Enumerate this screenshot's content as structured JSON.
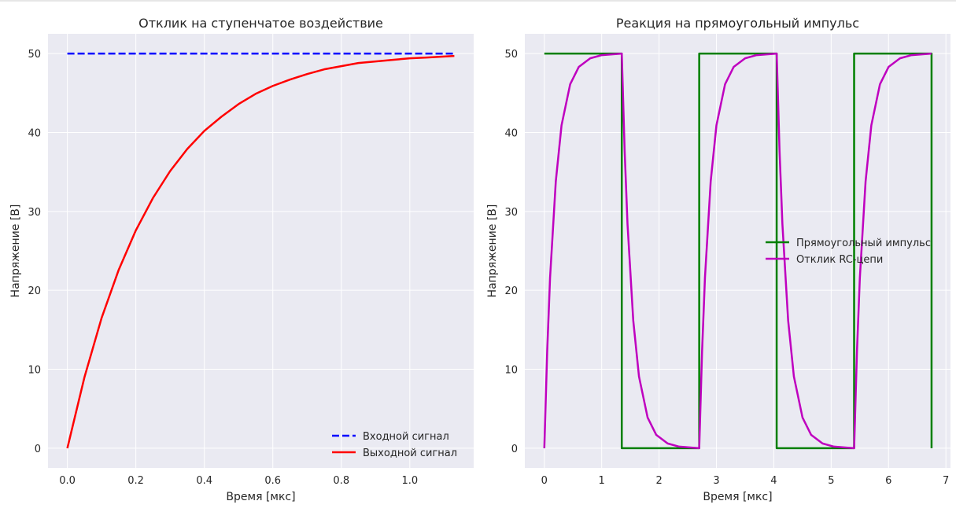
{
  "chart_data": [
    {
      "type": "line",
      "title": "Отклик на ступенчатое воздействие",
      "xlabel": "Время [мкс]",
      "ylabel": "Напряжение [В]",
      "xlim": [
        -0.0565,
        1.1865
      ],
      "ylim": [
        -2.5,
        52.5
      ],
      "xticks": [
        0.0,
        0.2,
        0.4,
        0.6,
        0.8,
        1.0
      ],
      "xtick_labels": [
        "0.0",
        "0.2",
        "0.4",
        "0.6",
        "0.8",
        "1.0"
      ],
      "yticks": [
        0,
        10,
        20,
        30,
        40,
        50
      ],
      "ytick_labels": [
        "0",
        "10",
        "20",
        "30",
        "40",
        "50"
      ],
      "grid": true,
      "legend_position": "lower right",
      "series": [
        {
          "name": "Входной сигнал",
          "color": "#0000ff",
          "style": "dashed",
          "x": [
            0.0,
            1.13
          ],
          "y": [
            50,
            50
          ]
        },
        {
          "name": "Выходной сигнал",
          "color": "#ff0000",
          "style": "solid",
          "x": [
            0.0,
            0.05,
            0.1,
            0.15,
            0.2,
            0.25,
            0.3,
            0.35,
            0.4,
            0.45,
            0.5,
            0.55,
            0.6,
            0.65,
            0.7,
            0.75,
            0.8,
            0.85,
            0.9,
            0.95,
            1.0,
            1.05,
            1.13
          ],
          "y": [
            0.0,
            9.0,
            16.5,
            22.6,
            27.6,
            31.7,
            35.1,
            37.9,
            40.2,
            42.0,
            43.6,
            44.9,
            45.9,
            46.7,
            47.4,
            48.0,
            48.4,
            48.8,
            49.0,
            49.2,
            49.4,
            49.5,
            49.7
          ]
        }
      ]
    },
    {
      "type": "line",
      "title": "Реакция на прямоугольный импульс",
      "xlabel": "Время [мкс]",
      "ylabel": "Напряжение [В]",
      "xlim": [
        -0.34,
        7.08
      ],
      "ylim": [
        -2.5,
        52.5
      ],
      "xticks": [
        0,
        1,
        2,
        3,
        4,
        5,
        6,
        7
      ],
      "xtick_labels": [
        "0",
        "1",
        "2",
        "3",
        "4",
        "5",
        "6",
        "7"
      ],
      "yticks": [
        0,
        10,
        20,
        30,
        40,
        50
      ],
      "ytick_labels": [
        "0",
        "10",
        "20",
        "30",
        "40",
        "50"
      ],
      "grid": true,
      "legend_position": "center right",
      "series": [
        {
          "name": "Прямоугольный импульс",
          "color": "#008000",
          "style": "solid",
          "x": [
            0,
            1.35,
            1.35,
            2.7,
            2.7,
            4.05,
            4.05,
            5.4,
            5.4,
            6.75,
            6.75
          ],
          "y": [
            50,
            50,
            0,
            0,
            50,
            50,
            0,
            0,
            50,
            50,
            0
          ]
        },
        {
          "name": "Отклик RC-цепи",
          "color": "#bf00bf",
          "style": "solid",
          "x": [
            0.0,
            0.05,
            0.1,
            0.2,
            0.3,
            0.45,
            0.6,
            0.8,
            1.0,
            1.35,
            1.4,
            1.45,
            1.55,
            1.65,
            1.8,
            1.95,
            2.15,
            2.35,
            2.7,
            2.75,
            2.8,
            2.9,
            3.0,
            3.15,
            3.3,
            3.5,
            3.7,
            4.05,
            4.1,
            4.15,
            4.25,
            4.35,
            4.5,
            4.65,
            4.85,
            5.05,
            5.4,
            5.45,
            5.5,
            5.6,
            5.7,
            5.85,
            6.0,
            6.2,
            6.4,
            6.75
          ],
          "y": [
            0.0,
            12.3,
            21.6,
            33.8,
            40.9,
            46.1,
            48.3,
            49.4,
            49.8,
            50.0,
            37.7,
            28.4,
            16.2,
            9.1,
            3.9,
            1.7,
            0.6,
            0.2,
            0.0,
            12.3,
            21.6,
            33.8,
            40.9,
            46.1,
            48.3,
            49.4,
            49.8,
            50.0,
            37.7,
            28.4,
            16.2,
            9.1,
            3.9,
            1.7,
            0.6,
            0.2,
            0.0,
            12.3,
            21.6,
            33.8,
            40.9,
            46.1,
            48.3,
            49.4,
            49.8,
            50.0
          ]
        }
      ]
    }
  ]
}
